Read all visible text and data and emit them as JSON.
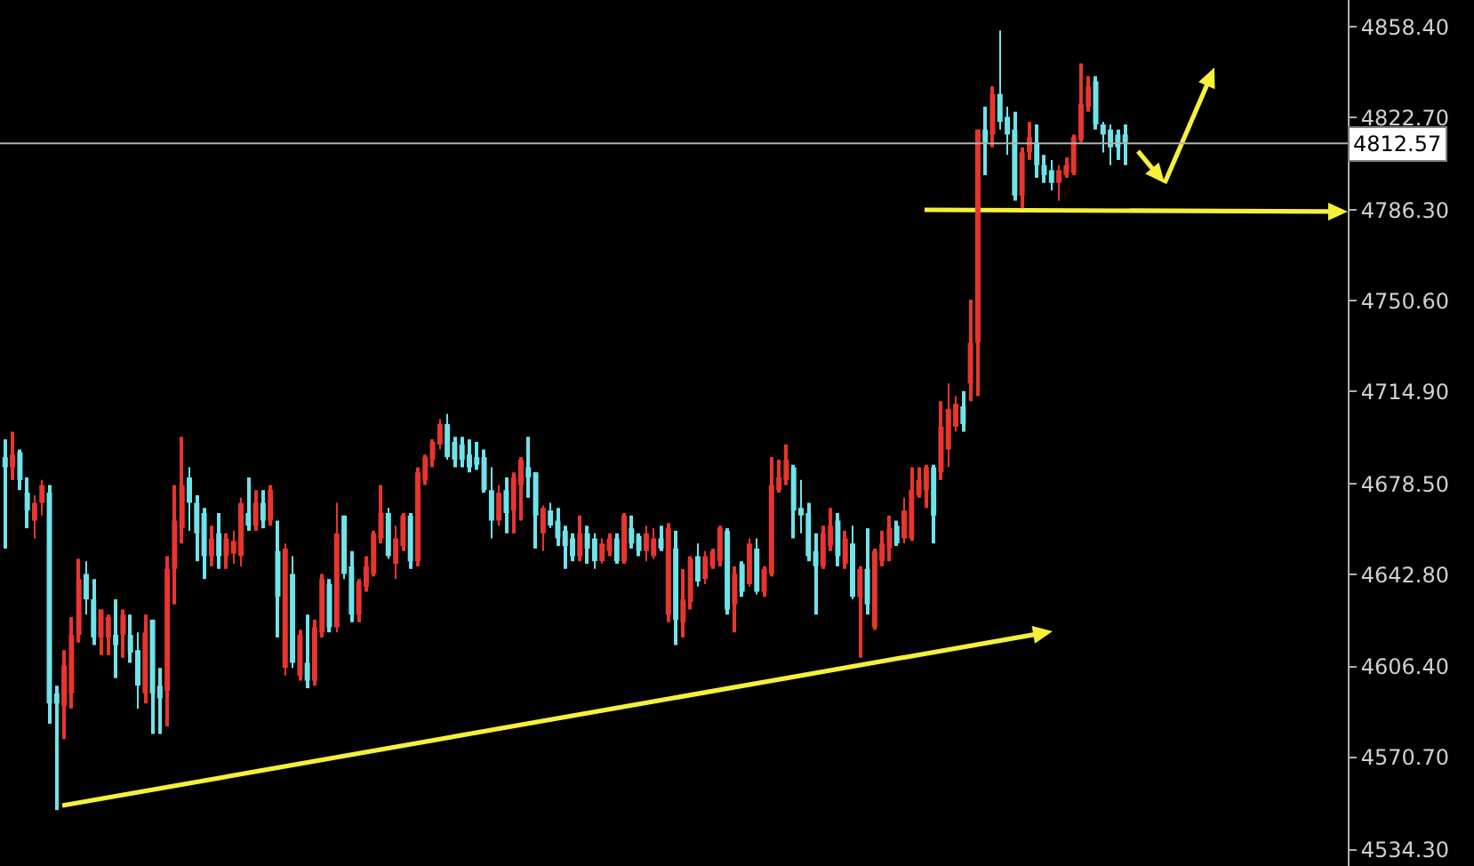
{
  "chart_data": {
    "type": "candlestick",
    "categories": [
      null,
      null,
      null,
      null,
      null,
      null,
      null,
      null,
      null,
      null,
      null,
      null,
      null,
      null,
      null,
      null,
      null,
      null,
      null,
      null,
      null,
      null,
      null,
      null,
      null,
      null,
      null,
      null,
      null,
      null,
      null,
      null,
      null,
      null,
      null,
      null,
      null,
      null,
      null,
      null,
      null,
      null,
      null,
      null,
      null,
      null,
      null,
      null,
      null,
      null,
      null,
      null,
      null,
      null,
      null,
      null,
      null,
      null,
      null,
      null,
      null,
      null,
      null,
      null,
      null,
      null,
      null,
      null,
      null,
      null,
      null,
      null,
      null,
      null,
      null,
      null,
      null,
      null,
      null,
      null,
      null,
      null,
      null,
      null,
      null,
      null,
      null,
      null,
      null,
      null,
      null,
      null,
      null,
      null,
      null,
      null,
      null,
      null,
      null,
      null,
      null,
      null,
      null,
      null,
      null,
      null,
      null,
      null,
      null,
      null,
      null,
      null,
      null,
      null,
      null,
      null,
      null,
      null,
      null,
      null,
      null,
      null,
      null,
      null,
      null,
      null,
      null,
      null,
      null,
      null,
      null,
      null,
      null,
      null,
      null,
      null,
      null,
      null,
      null,
      null,
      null,
      null,
      null,
      null,
      null,
      null,
      null,
      null,
      null,
      null,
      null,
      null,
      null,
      null,
      null,
      null,
      null,
      null,
      null,
      null,
      null,
      null,
      null,
      null,
      null,
      null,
      null,
      null,
      null,
      null,
      null,
      null,
      null,
      null,
      null,
      null,
      null,
      null,
      null,
      null,
      null,
      null,
      null
    ],
    "ohlc": [
      [
        4689,
        4696,
        4653,
        4685
      ],
      [
        4685,
        4699,
        4680,
        4690
      ],
      [
        4691,
        4692,
        4676,
        4680
      ],
      [
        4675,
        4681,
        4661,
        4668
      ],
      [
        4664,
        4674,
        4657,
        4671
      ],
      [
        4671,
        4680,
        4666,
        4678
      ],
      [
        4675,
        4678,
        4584,
        4592
      ],
      [
        4596,
        4599,
        4550,
        4592
      ],
      [
        4591,
        4613,
        4578,
        4607
      ],
      [
        4596,
        4626,
        4590,
        4619
      ],
      [
        4619,
        4649,
        4616,
        4641
      ],
      [
        4643,
        4648,
        4627,
        4633
      ],
      [
        4633,
        4641,
        4615,
        4618
      ],
      [
        4618,
        4629,
        4611,
        4629
      ],
      [
        4618,
        4627,
        4611,
        4626
      ],
      [
        4619,
        4633,
        4602,
        4615
      ],
      [
        4619,
        4629,
        4610,
        4627
      ],
      [
        4619,
        4627,
        4608,
        4612
      ],
      [
        4613,
        4620,
        4590,
        4599
      ],
      [
        4596,
        4627,
        4592,
        4620
      ],
      [
        4625,
        4625,
        4580,
        4596
      ],
      [
        4599,
        4606,
        4580,
        4594
      ],
      [
        4597,
        4650,
        4583,
        4645
      ],
      [
        4645,
        4678,
        4631,
        4664
      ],
      [
        4661,
        4697,
        4655,
        4678
      ],
      [
        4681,
        4685,
        4660,
        4671
      ],
      [
        4671,
        4674,
        4648,
        4659
      ],
      [
        4667,
        4669,
        4641,
        4650
      ],
      [
        4650,
        4662,
        4646,
        4657
      ],
      [
        4659,
        4667,
        4645,
        4650
      ],
      [
        4650,
        4659,
        4645,
        4657
      ],
      [
        4651,
        4660,
        4647,
        4656
      ],
      [
        4650,
        4673,
        4646,
        4671
      ],
      [
        4667,
        4681,
        4660,
        4662
      ],
      [
        4662,
        4676,
        4660,
        4671
      ],
      [
        4671,
        4676,
        4661,
        4664
      ],
      [
        4664,
        4678,
        4662,
        4676
      ],
      [
        4652,
        4664,
        4618,
        4634
      ],
      [
        4606,
        4655,
        4603,
        4653
      ],
      [
        4643,
        4650,
        4606,
        4608
      ],
      [
        4603,
        4621,
        4601,
        4619
      ],
      [
        4608,
        4627,
        4598,
        4601
      ],
      [
        4601,
        4625,
        4599,
        4622
      ],
      [
        4620,
        4643,
        4618,
        4641
      ],
      [
        4639,
        4641,
        4620,
        4622
      ],
      [
        4622,
        4671,
        4620,
        4659
      ],
      [
        4666,
        4666,
        4641,
        4643
      ],
      [
        4646,
        4652,
        4624,
        4627
      ],
      [
        4627,
        4641,
        4624,
        4640
      ],
      [
        4638,
        4650,
        4636,
        4646
      ],
      [
        4643,
        4660,
        4642,
        4659
      ],
      [
        4657,
        4678,
        4655,
        4667
      ],
      [
        4667,
        4669,
        4649,
        4650
      ],
      [
        4647,
        4662,
        4641,
        4657
      ],
      [
        4654,
        4667,
        4652,
        4666
      ],
      [
        4666,
        4667,
        4645,
        4648
      ],
      [
        4648,
        4685,
        4646,
        4683
      ],
      [
        4680,
        4690,
        4678,
        4689
      ],
      [
        4688,
        4696,
        4685,
        4695
      ],
      [
        4694,
        4704,
        4692,
        4702
      ],
      [
        4702,
        4706,
        4688,
        4689
      ],
      [
        4695,
        4697,
        4685,
        4688
      ],
      [
        4694,
        4697,
        4685,
        4688
      ],
      [
        4690,
        4696,
        4683,
        4685
      ],
      [
        4689,
        4695,
        4684,
        4686
      ],
      [
        4689,
        4692,
        4675,
        4676
      ],
      [
        4676,
        4685,
        4657,
        4664
      ],
      [
        4664,
        4678,
        4662,
        4675
      ],
      [
        4676,
        4681,
        4659,
        4667
      ],
      [
        4668,
        4683,
        4659,
        4681
      ],
      [
        4678,
        4689,
        4664,
        4688
      ],
      [
        4685,
        4697,
        4673,
        4681
      ],
      [
        4683,
        4683,
        4653,
        4666
      ],
      [
        4659,
        4670,
        4652,
        4669
      ],
      [
        4668,
        4671,
        4661,
        4662
      ],
      [
        4664,
        4669,
        4654,
        4657
      ],
      [
        4660,
        4662,
        4645,
        4654
      ],
      [
        4657,
        4659,
        4648,
        4650
      ],
      [
        4650,
        4666,
        4648,
        4659
      ],
      [
        4659,
        4662,
        4647,
        4653
      ],
      [
        4657,
        4659,
        4645,
        4648
      ],
      [
        4648,
        4657,
        4647,
        4655
      ],
      [
        4652,
        4659,
        4650,
        4657
      ],
      [
        4657,
        4659,
        4647,
        4648
      ],
      [
        4648,
        4667,
        4647,
        4666
      ],
      [
        4661,
        4666,
        4653,
        4655
      ],
      [
        4658,
        4659,
        4650,
        4652
      ],
      [
        4652,
        4662,
        4648,
        4659
      ],
      [
        4650,
        4661,
        4649,
        4657
      ],
      [
        4657,
        4662,
        4652,
        4653
      ],
      [
        4627,
        4663,
        4624,
        4661
      ],
      [
        4653,
        4660,
        4615,
        4625
      ],
      [
        4624,
        4645,
        4618,
        4633
      ],
      [
        4632,
        4650,
        4629,
        4649
      ],
      [
        4650,
        4655,
        4638,
        4640
      ],
      [
        4641,
        4652,
        4639,
        4650
      ],
      [
        4646,
        4653,
        4645,
        4652
      ],
      [
        4648,
        4662,
        4646,
        4661
      ],
      [
        4660,
        4661,
        4627,
        4629
      ],
      [
        4631,
        4646,
        4620,
        4643
      ],
      [
        4647,
        4648,
        4634,
        4636
      ],
      [
        4639,
        4657,
        4638,
        4655
      ],
      [
        4653,
        4657,
        4635,
        4636
      ],
      [
        4636,
        4646,
        4634,
        4645
      ],
      [
        4643,
        4689,
        4642,
        4678
      ],
      [
        4676,
        4688,
        4675,
        4681
      ],
      [
        4680,
        4694,
        4678,
        4688
      ],
      [
        4685,
        4686,
        4657,
        4668
      ],
      [
        4669,
        4680,
        4659,
        4666
      ],
      [
        4667,
        4671,
        4648,
        4650
      ],
      [
        4652,
        4659,
        4627,
        4646
      ],
      [
        4646,
        4662,
        4645,
        4659
      ],
      [
        4654,
        4669,
        4652,
        4662
      ],
      [
        4664,
        4667,
        4646,
        4650
      ],
      [
        4647,
        4660,
        4645,
        4657
      ],
      [
        4655,
        4662,
        4633,
        4634
      ],
      [
        4634,
        4646,
        4610,
        4645
      ],
      [
        4645,
        4661,
        4627,
        4631
      ],
      [
        4622,
        4653,
        4621,
        4652
      ],
      [
        4648,
        4660,
        4646,
        4655
      ],
      [
        4653,
        4666,
        4648,
        4661
      ],
      [
        4662,
        4664,
        4654,
        4655
      ],
      [
        4657,
        4673,
        4655,
        4668
      ],
      [
        4657,
        4685,
        4656,
        4676
      ],
      [
        4674,
        4685,
        4673,
        4680
      ],
      [
        4676,
        4686,
        4669,
        4685
      ],
      [
        4685,
        4686,
        4655,
        4666
      ],
      [
        4683,
        4711,
        4680,
        4701
      ],
      [
        4692,
        4718,
        4685,
        4708
      ],
      [
        4701,
        4713,
        4699,
        4710
      ],
      [
        4709,
        4715,
        4699,
        4702
      ],
      [
        4718,
        4751,
        4711,
        4734
      ],
      [
        4734,
        4818,
        4713,
        4818
      ],
      [
        4818,
        4827,
        4800,
        4813
      ],
      [
        4816,
        4835,
        4811,
        4832
      ],
      [
        4832,
        4857,
        4818,
        4821
      ],
      [
        4823,
        4827,
        4808,
        4816
      ],
      [
        4818,
        4825,
        4790,
        4792
      ],
      [
        4792,
        4811,
        4787,
        4809
      ],
      [
        4809,
        4821,
        4806,
        4815
      ],
      [
        4813,
        4820,
        4799,
        4804
      ],
      [
        4804,
        4808,
        4797,
        4800
      ],
      [
        4802,
        4806,
        4794,
        4797
      ],
      [
        4797,
        4804,
        4790,
        4802
      ],
      [
        4800,
        4807,
        4799,
        4804
      ],
      [
        4801,
        4816,
        4800,
        4815
      ],
      [
        4814,
        4844,
        4813,
        4828
      ],
      [
        4827,
        4839,
        4825,
        4835
      ],
      [
        4837,
        4839,
        4818,
        4820
      ],
      [
        4820,
        4821,
        4809,
        4816
      ],
      [
        4818,
        4820,
        4804,
        4811
      ],
      [
        4816,
        4818,
        4806,
        4811
      ],
      [
        4816,
        4820,
        4804,
        4813
      ],
      null,
      null,
      null,
      null,
      null,
      null,
      null,
      null,
      null,
      null,
      null,
      null,
      null,
      null,
      null,
      null,
      null,
      null,
      null,
      null,
      null,
      null,
      null,
      null,
      null,
      null,
      null,
      null,
      null,
      null
    ],
    "ref_lines": [
      {
        "axis": "y",
        "value": 4812.57,
        "label": "4812.57",
        "color": "#b0b0b0"
      }
    ],
    "ylim": [
      4528,
      4869
    ],
    "yticks": [
      {
        "value": 4858.4,
        "label": "4858.40"
      },
      {
        "value": 4822.7,
        "label": "4822.70"
      },
      {
        "value": 4786.3,
        "label": "4786.30"
      },
      {
        "value": 4750.6,
        "label": "4750.60"
      },
      {
        "value": 4714.9,
        "label": "4714.90"
      },
      {
        "value": 4678.5,
        "label": "4678.50"
      },
      {
        "value": 4642.8,
        "label": "4642.80"
      },
      {
        "value": 4606.4,
        "label": "4606.40"
      },
      {
        "value": 4570.7,
        "label": "4570.70"
      },
      {
        "value": 4534.3,
        "label": "4534.30"
      }
    ],
    "tick_labels": "y",
    "grid": false
  }
}
